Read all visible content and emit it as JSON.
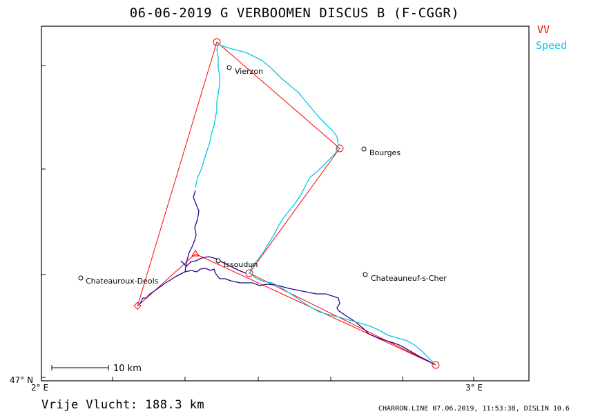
{
  "title": "06-06-2019   G VERBOOMEN    DISCUS B (F-CGGR)",
  "legend": [
    {
      "label": "VV",
      "color": "#ff0000"
    },
    {
      "label": "Speed",
      "color": "#00c8e8"
    }
  ],
  "axes": {
    "x_left_label": "2° E",
    "x_right_label": "3° E",
    "y_bottom_label": "47° N"
  },
  "scale_bar": {
    "label": "10  km"
  },
  "places": [
    {
      "name": "Vierzon"
    },
    {
      "name": "Bourges"
    },
    {
      "name": "Issoudun"
    },
    {
      "name": "Chateauroux-Deols"
    },
    {
      "name": "Chateauneuf-s-Cher"
    }
  ],
  "footer": {
    "distance": "Vrije Vlucht:  188.3 km",
    "credits": "CHARRON.LINE 07.06.2019, 11:53:38, DISLIN 10.6"
  },
  "colors": {
    "task_line": "#ff0000",
    "track_speed": "#00c8e8",
    "track_vv": "#2a0090",
    "frame": "#000000"
  }
}
